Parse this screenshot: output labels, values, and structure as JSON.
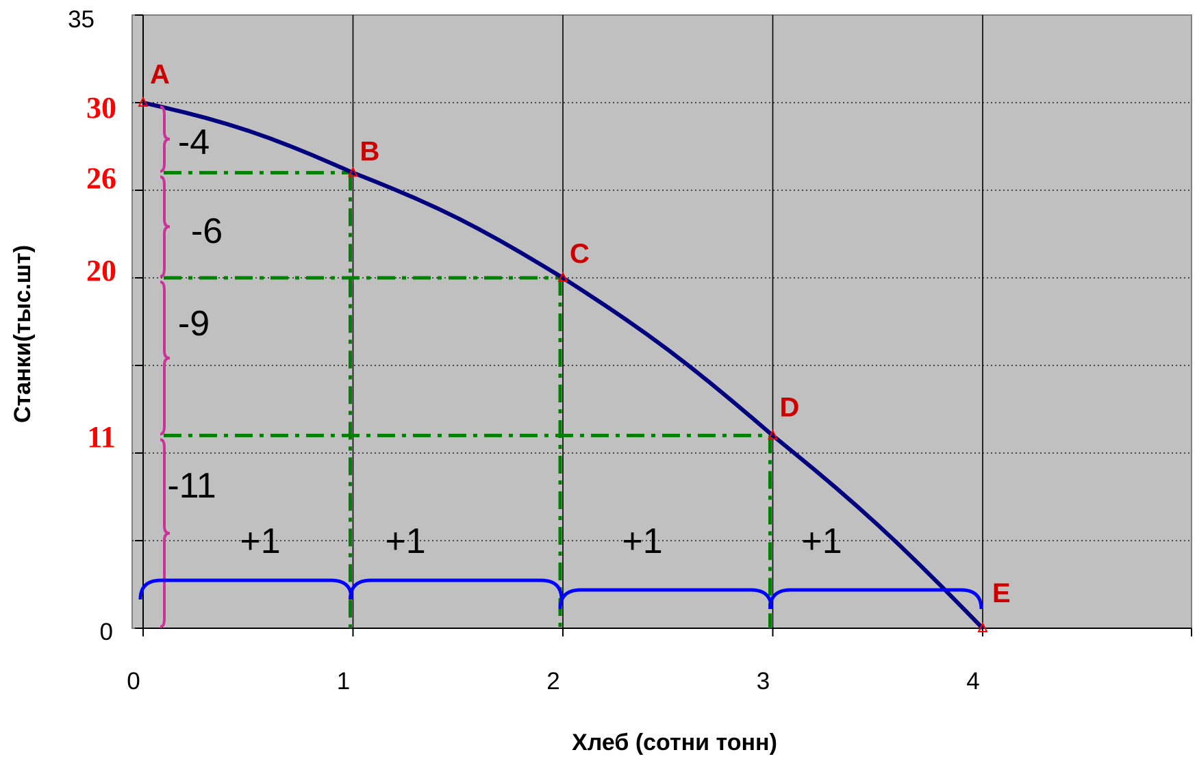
{
  "chart_data": {
    "type": "line",
    "xlabel": "Хлеб (сотни тонн)",
    "ylabel": "Станки(тыс.шт)",
    "xlim": [
      0,
      5
    ],
    "ylim": [
      0,
      35
    ],
    "x_ticks": [
      "0",
      "1",
      "2",
      "3",
      "4"
    ],
    "y_ticks_top": "35",
    "y_ticks_bottom": "0",
    "grid": "vertical lines at each x; dotted horizontal lines every 5",
    "series": [
      {
        "values_x": [
          0,
          1,
          2,
          3,
          4
        ],
        "values_y": [
          30,
          26,
          20,
          11,
          0
        ],
        "color": "#00007f"
      }
    ],
    "points": [
      {
        "label": "A",
        "x": 0,
        "y": 30
      },
      {
        "label": "B",
        "x": 1,
        "y": 26
      },
      {
        "label": "C",
        "x": 2,
        "y": 20
      },
      {
        "label": "D",
        "x": 3,
        "y": 11
      },
      {
        "label": "E",
        "x": 4,
        "y": 0
      }
    ],
    "y_value_labels": [
      "30",
      "26",
      "20",
      "11"
    ],
    "decrement_labels": [
      "-4",
      "-6",
      "-9",
      "-11"
    ],
    "increment_labels": [
      "+1",
      "+1",
      "+1",
      "+1"
    ],
    "colors": {
      "plot_bg": "#c0c0c0",
      "curve": "#00007f",
      "point_label": "#cc0000",
      "guide": "#008000",
      "brace_y": "#cc3399",
      "brace_x": "#0000ff"
    }
  }
}
